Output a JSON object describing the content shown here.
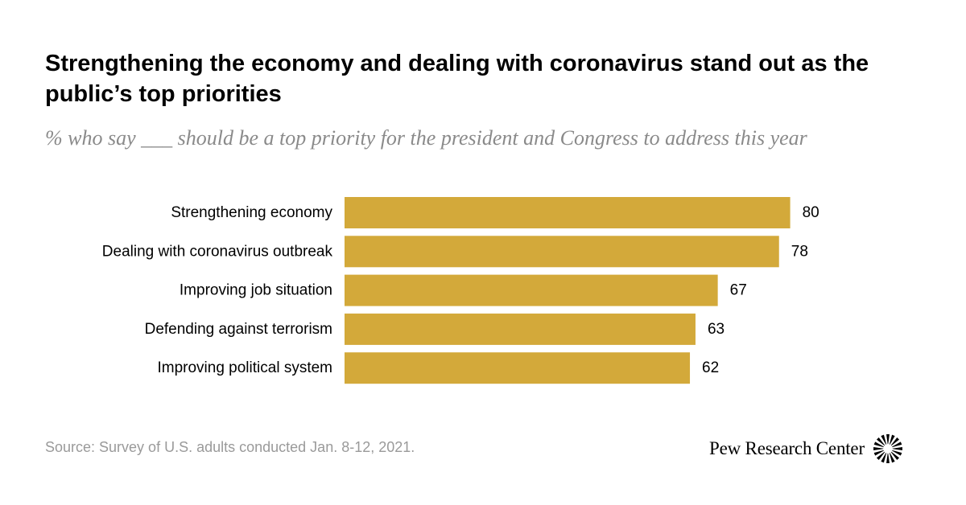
{
  "chart_data": {
    "type": "bar",
    "orientation": "horizontal",
    "title": "Strengthening the economy and dealing with coronavirus stand out as the public’s top priorities",
    "subtitle": "% who say ___ should be a top priority for the president and Congress to address this year",
    "categories": [
      "Strengthening economy",
      "Dealing with coronavirus outbreak",
      "Improving job situation",
      "Defending against terrorism",
      "Improving political system"
    ],
    "values": [
      80,
      78,
      67,
      63,
      62
    ],
    "xlim": [
      0,
      100
    ],
    "xlabel": "",
    "ylabel": "",
    "grid": false,
    "bar_color": "#d3a93a"
  },
  "footer": {
    "source": "Source: Survey of U.S. adults conducted Jan. 8-12, 2021.",
    "brand": "Pew Research Center"
  }
}
